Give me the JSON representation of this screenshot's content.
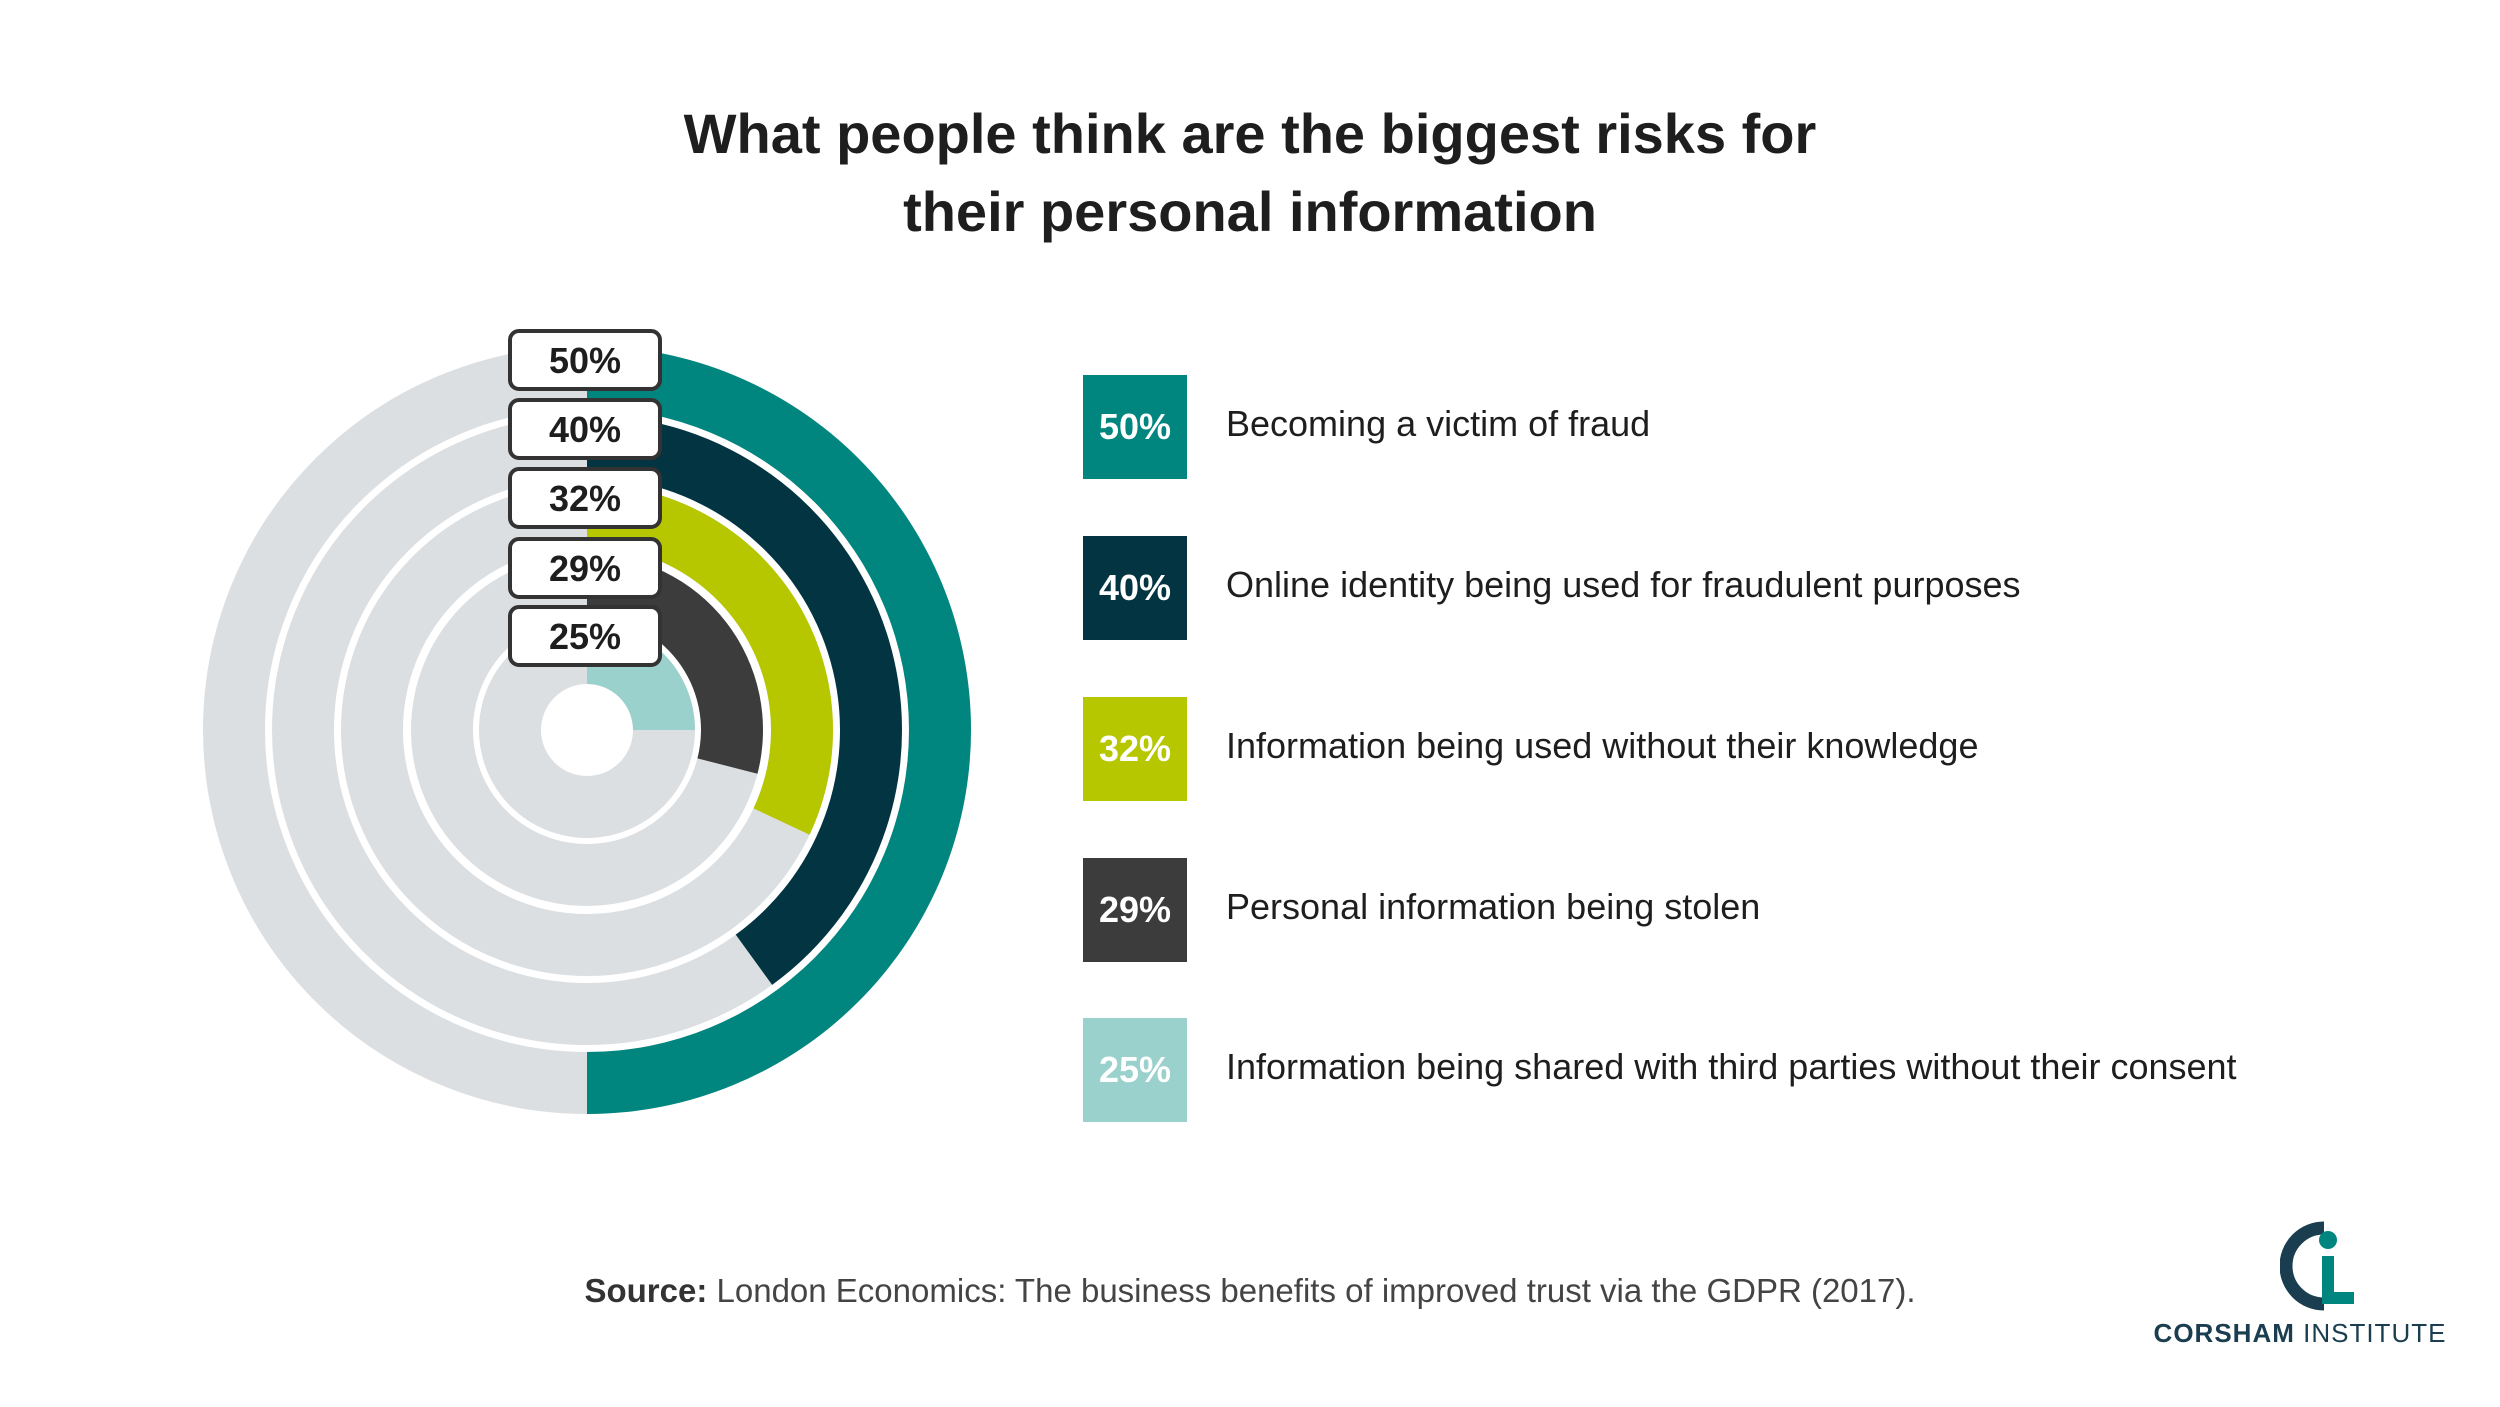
{
  "title": {
    "line1": "What people think are the biggest risks for",
    "line2": "their personal information"
  },
  "colors": {
    "track": "#dcdfe2",
    "accent_teal": "#00857f",
    "navy": "#023442",
    "lime": "#b6c700",
    "charcoal": "#3c3c3c",
    "light_teal": "#9ad1cc"
  },
  "chart_data": {
    "type": "radial-bar",
    "series": [
      {
        "label": "50%",
        "value": 50,
        "color": "#00857f",
        "name": "Becoming a victim of fraud"
      },
      {
        "label": "40%",
        "value": 40,
        "color": "#023442",
        "name": "Online identity being used for fraudulent purposes"
      },
      {
        "label": "32%",
        "value": 32,
        "color": "#b6c700",
        "name": "Information being used without their knowledge"
      },
      {
        "label": "29%",
        "value": 29,
        "color": "#3c3c3c",
        "name": "Personal information being stolen"
      },
      {
        "label": "25%",
        "value": 25,
        "color": "#9ad1cc",
        "name": "Information being shared with third parties without their consent"
      }
    ],
    "max": 100
  },
  "source": {
    "prefix": "Source:",
    "text": " London Economics: The business benefits of improved trust via the GDPR (2017)."
  },
  "logo": {
    "name_bold": "CORSHAM",
    "name_rest": " INSTITUTE"
  }
}
